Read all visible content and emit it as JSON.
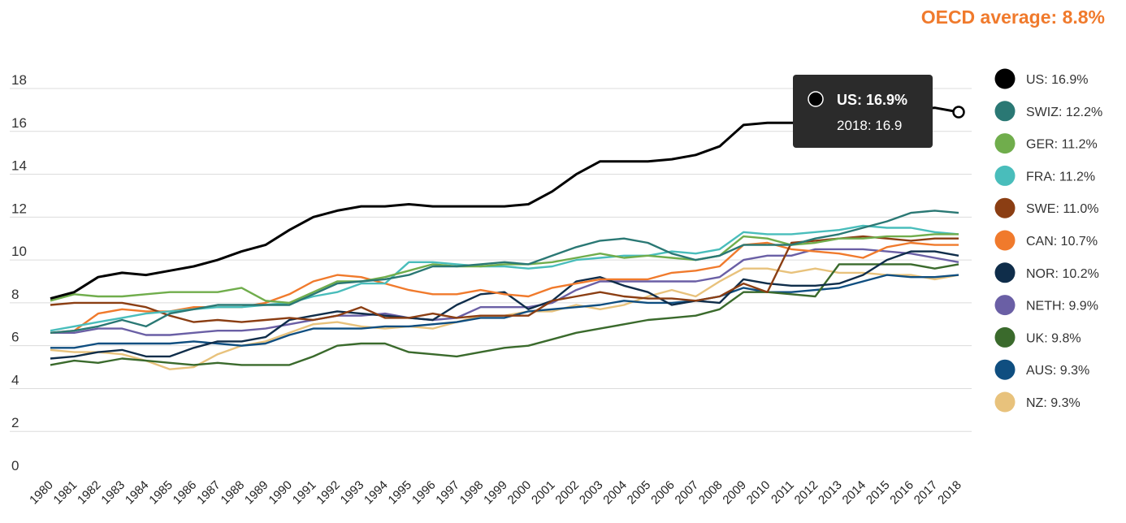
{
  "oecd_label": "OECD average: 8.8%",
  "tooltip": {
    "title": "US: 16.9%",
    "subtitle": "2018: 16.9",
    "year": 2018,
    "series": "US"
  },
  "chart_data": {
    "type": "line",
    "title": "",
    "xlabel": "",
    "ylabel": "",
    "ylim": [
      0,
      18
    ],
    "yticks": [
      0,
      2,
      4,
      6,
      8,
      10,
      12,
      14,
      16,
      18
    ],
    "grid": true,
    "legend_position": "right",
    "x": [
      1980,
      1981,
      1982,
      1983,
      1984,
      1985,
      1986,
      1987,
      1988,
      1989,
      1990,
      1991,
      1992,
      1993,
      1994,
      1995,
      1996,
      1997,
      1998,
      1999,
      2000,
      2001,
      2002,
      2003,
      2004,
      2005,
      2006,
      2007,
      2008,
      2009,
      2010,
      2011,
      2012,
      2013,
      2014,
      2015,
      2016,
      2017,
      2018
    ],
    "series": [
      {
        "name": "US",
        "legend": "US: 16.9%",
        "color": "#000000",
        "values": [
          8.2,
          8.5,
          9.2,
          9.4,
          9.3,
          9.5,
          9.7,
          10.0,
          10.4,
          10.7,
          11.4,
          12.0,
          12.3,
          12.5,
          12.5,
          12.6,
          12.5,
          12.5,
          12.5,
          12.5,
          12.6,
          13.2,
          14.0,
          14.6,
          14.6,
          14.6,
          14.7,
          14.9,
          15.3,
          16.3,
          16.4,
          16.4,
          16.4,
          16.4,
          16.5,
          16.7,
          17.0,
          17.1,
          16.9
        ]
      },
      {
        "name": "SWIZ",
        "legend": "SWIZ: 12.2%",
        "color": "#2a7874",
        "values": [
          6.6,
          6.7,
          6.9,
          7.2,
          6.9,
          7.5,
          7.7,
          7.9,
          7.9,
          7.9,
          7.9,
          8.4,
          8.9,
          9.0,
          9.1,
          9.3,
          9.7,
          9.7,
          9.8,
          9.9,
          9.8,
          10.2,
          10.6,
          10.9,
          11.0,
          10.8,
          10.3,
          10.0,
          10.2,
          10.7,
          10.7,
          10.7,
          11.0,
          11.2,
          11.5,
          11.8,
          12.2,
          12.3,
          12.2
        ]
      },
      {
        "name": "GER",
        "legend": "GER: 11.2%",
        "color": "#70ad4c",
        "values": [
          8.1,
          8.4,
          8.3,
          8.3,
          8.4,
          8.5,
          8.5,
          8.5,
          8.7,
          8.1,
          8.0,
          8.5,
          9.0,
          9.0,
          9.2,
          9.5,
          9.8,
          9.7,
          9.7,
          9.8,
          9.8,
          9.9,
          10.1,
          10.3,
          10.1,
          10.2,
          10.1,
          10.0,
          10.2,
          11.1,
          11.0,
          10.7,
          10.8,
          11.0,
          11.0,
          11.1,
          11.1,
          11.2,
          11.2
        ]
      },
      {
        "name": "FRA",
        "legend": "FRA: 11.2%",
        "color": "#49bdbb",
        "values": [
          6.7,
          6.9,
          7.1,
          7.3,
          7.5,
          7.6,
          7.7,
          7.8,
          7.8,
          7.9,
          8.0,
          8.3,
          8.5,
          8.9,
          8.9,
          9.9,
          9.9,
          9.8,
          9.7,
          9.7,
          9.6,
          9.7,
          10.0,
          10.1,
          10.2,
          10.2,
          10.4,
          10.3,
          10.5,
          11.3,
          11.2,
          11.2,
          11.3,
          11.4,
          11.6,
          11.5,
          11.5,
          11.3,
          11.2
        ]
      },
      {
        "name": "SWE",
        "legend": "SWE: 11.0%",
        "color": "#8b3e13",
        "values": [
          7.9,
          8.0,
          8.0,
          8.0,
          7.8,
          7.4,
          7.1,
          7.2,
          7.1,
          7.2,
          7.3,
          7.2,
          7.4,
          7.8,
          7.3,
          7.3,
          7.5,
          7.3,
          7.4,
          7.4,
          7.4,
          8.1,
          8.3,
          8.5,
          8.3,
          8.2,
          8.2,
          8.1,
          8.3,
          8.9,
          8.5,
          10.8,
          10.9,
          11.0,
          11.1,
          11.0,
          10.9,
          11.0,
          11.0
        ]
      },
      {
        "name": "CAN",
        "legend": "CAN: 10.7%",
        "color": "#f07a2c",
        "values": [
          6.6,
          6.7,
          7.5,
          7.7,
          7.6,
          7.6,
          7.8,
          7.8,
          7.8,
          8.0,
          8.4,
          9.0,
          9.3,
          9.2,
          8.9,
          8.6,
          8.4,
          8.4,
          8.6,
          8.4,
          8.3,
          8.7,
          8.9,
          9.1,
          9.1,
          9.1,
          9.4,
          9.5,
          9.7,
          10.7,
          10.8,
          10.5,
          10.4,
          10.3,
          10.1,
          10.6,
          10.8,
          10.7,
          10.7
        ]
      },
      {
        "name": "NOR",
        "legend": "NOR: 10.2%",
        "color": "#0f2d4a",
        "values": [
          5.4,
          5.5,
          5.7,
          5.8,
          5.5,
          5.5,
          5.9,
          6.2,
          6.2,
          6.4,
          7.2,
          7.4,
          7.6,
          7.5,
          7.4,
          7.3,
          7.2,
          7.9,
          8.4,
          8.5,
          7.7,
          8.1,
          9.0,
          9.2,
          8.8,
          8.5,
          7.9,
          8.1,
          8.0,
          9.1,
          8.9,
          8.8,
          8.8,
          8.9,
          9.3,
          10.0,
          10.4,
          10.4,
          10.2
        ]
      },
      {
        "name": "NETH",
        "legend": "NETH: 9.9%",
        "color": "#6a5fa5",
        "values": [
          6.6,
          6.6,
          6.8,
          6.8,
          6.5,
          6.5,
          6.6,
          6.7,
          6.7,
          6.8,
          7.0,
          7.2,
          7.4,
          7.4,
          7.5,
          7.3,
          7.2,
          7.3,
          7.8,
          7.8,
          7.8,
          8.0,
          8.6,
          9.0,
          9.0,
          9.0,
          9.0,
          9.0,
          9.2,
          10.0,
          10.2,
          10.2,
          10.5,
          10.5,
          10.5,
          10.4,
          10.3,
          10.1,
          9.9
        ]
      },
      {
        "name": "UK",
        "legend": "UK: 9.8%",
        "color": "#3a6a2c",
        "values": [
          5.1,
          5.3,
          5.2,
          5.4,
          5.3,
          5.2,
          5.1,
          5.2,
          5.1,
          5.1,
          5.1,
          5.5,
          6.0,
          6.1,
          6.1,
          5.7,
          5.6,
          5.5,
          5.7,
          5.9,
          6.0,
          6.3,
          6.6,
          6.8,
          7.0,
          7.2,
          7.3,
          7.4,
          7.7,
          8.5,
          8.5,
          8.4,
          8.3,
          9.8,
          9.8,
          9.8,
          9.8,
          9.6,
          9.8
        ]
      },
      {
        "name": "AUS",
        "legend": "AUS: 9.3%",
        "color": "#0f4e80",
        "values": [
          5.9,
          5.9,
          6.1,
          6.1,
          6.1,
          6.1,
          6.2,
          6.1,
          6.0,
          6.1,
          6.5,
          6.8,
          6.8,
          6.8,
          6.9,
          6.9,
          7.0,
          7.1,
          7.3,
          7.3,
          7.6,
          7.7,
          7.8,
          7.9,
          8.1,
          8.0,
          8.0,
          8.1,
          8.3,
          8.7,
          8.5,
          8.5,
          8.6,
          8.7,
          9.0,
          9.3,
          9.2,
          9.2,
          9.3
        ]
      },
      {
        "name": "NZ",
        "legend": "NZ: 9.3%",
        "color": "#e8c27c",
        "values": [
          5.8,
          5.7,
          5.7,
          5.6,
          5.3,
          4.9,
          5.0,
          5.6,
          6.0,
          6.2,
          6.6,
          7.0,
          7.1,
          6.9,
          6.8,
          6.9,
          6.8,
          7.1,
          7.4,
          7.4,
          7.6,
          7.6,
          7.9,
          7.7,
          7.9,
          8.3,
          8.6,
          8.3,
          9.0,
          9.6,
          9.6,
          9.4,
          9.6,
          9.4,
          9.4,
          9.3,
          9.3,
          9.1,
          9.3
        ]
      }
    ]
  }
}
